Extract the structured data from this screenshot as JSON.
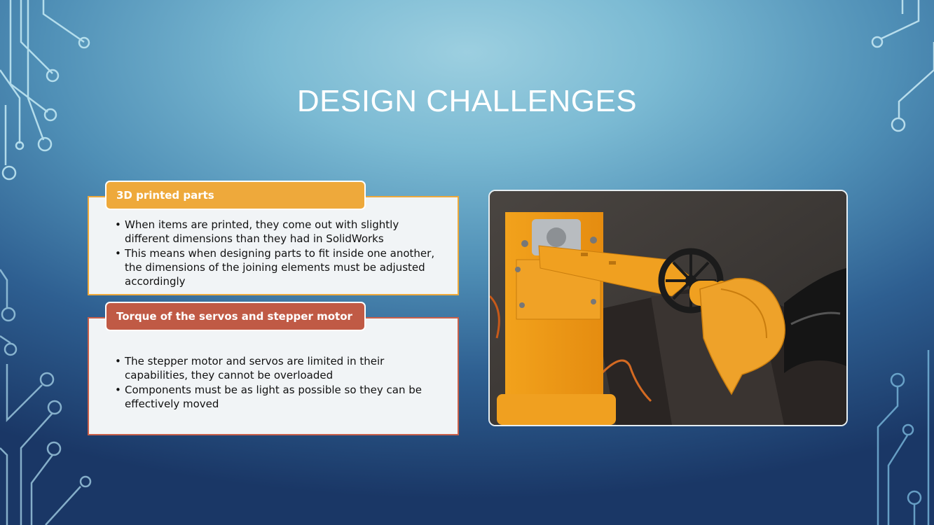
{
  "slide": {
    "title": "DESIGN CHALLENGES",
    "sections": [
      {
        "heading": "3D printed parts",
        "bullets": [
          "When items are printed, they come out with slightly different dimensions than they had in SolidWorks",
          "This means when designing parts to fit inside one another, the dimensions of the joining elements must be adjusted accordingly"
        ]
      },
      {
        "heading": "Torque of the servos and stepper motor",
        "bullets": [
          "The stepper motor and servos are limited in their capabilities, they cannot be overloaded",
          "Components must be as light as possible so they can be effectively moved"
        ]
      }
    ]
  },
  "colors": {
    "section1_accent": "#eea93b",
    "section2_accent": "#c05a45",
    "title_text": "#ffffff",
    "box_fill": "#f1f4f6"
  },
  "photo": {
    "subject": "3D printed robotic arm with stepper motor, servo and scoop"
  }
}
